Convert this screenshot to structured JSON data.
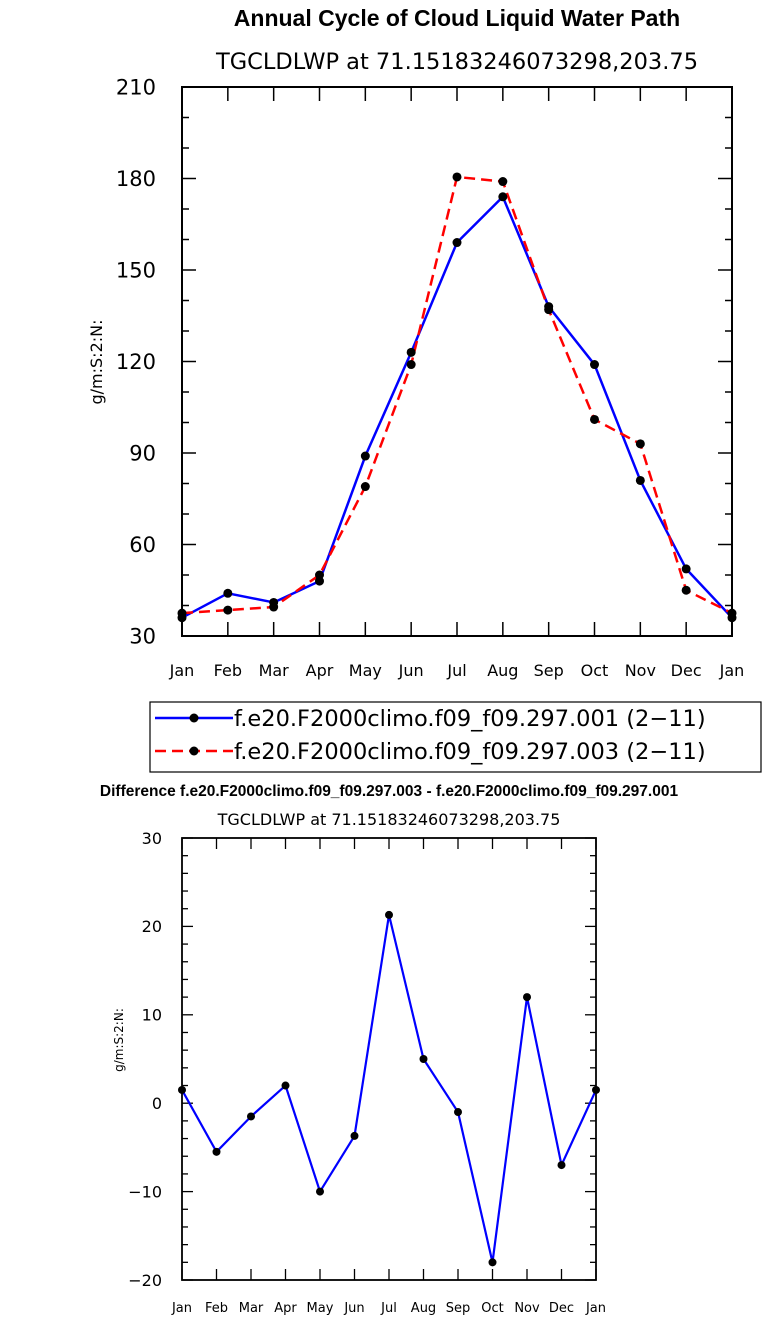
{
  "chart_data": [
    {
      "type": "line",
      "title": "Annual Cycle of Cloud Liquid Water Path",
      "subtitle": "TGCLDLWP  at  71.15183246073298,203.75",
      "xlabel": "",
      "ylabel": "g/m:S:2:N:",
      "categories": [
        "Jan",
        "Feb",
        "Mar",
        "Apr",
        "May",
        "Jun",
        "Jul",
        "Aug",
        "Sep",
        "Oct",
        "Nov",
        "Dec",
        "Jan"
      ],
      "ylim": [
        30,
        210
      ],
      "yticks": [
        30,
        60,
        90,
        120,
        150,
        180,
        210
      ],
      "ytick_labels": [
        "30",
        "60",
        "90",
        "120",
        "150",
        "180",
        "210"
      ],
      "series": [
        {
          "name": "f.e20.F2000climo.f09_f09.297.001 (2−11)",
          "color": "#0000ff",
          "dash": "solid",
          "values": [
            36,
            44,
            41,
            48,
            89,
            123,
            159,
            174,
            138,
            119,
            81,
            52,
            36
          ]
        },
        {
          "name": "f.e20.F2000climo.f09_f09.297.003 (2−11)",
          "color": "#ff0000",
          "dash": "dashed",
          "values": [
            37.5,
            38.5,
            39.5,
            50,
            79,
            119,
            180.5,
            179,
            137,
            101,
            93,
            45,
            37.5
          ]
        }
      ]
    },
    {
      "type": "line",
      "title": "Difference f.e20.F2000climo.f09_f09.297.003 - f.e20.F2000climo.f09_f09.297.001",
      "subtitle": "TGCLDLWP  at  71.15183246073298,203.75",
      "xlabel": "",
      "ylabel": "g/m:S:2:N:",
      "categories": [
        "Jan",
        "Feb",
        "Mar",
        "Apr",
        "May",
        "Jun",
        "Jul",
        "Aug",
        "Sep",
        "Oct",
        "Nov",
        "Dec",
        "Jan"
      ],
      "ylim": [
        -20,
        30
      ],
      "yticks": [
        -20,
        -10,
        0,
        10,
        20,
        30
      ],
      "ytick_labels": [
        "−20",
        "−10",
        "0",
        "10",
        "20",
        "30"
      ],
      "series": [
        {
          "name": "difference",
          "color": "#0000ff",
          "dash": "solid",
          "values": [
            1.5,
            -5.5,
            -1.5,
            2,
            -10,
            -3.7,
            21.3,
            5,
            -1,
            -18,
            12,
            -7,
            1.5
          ]
        }
      ]
    }
  ]
}
